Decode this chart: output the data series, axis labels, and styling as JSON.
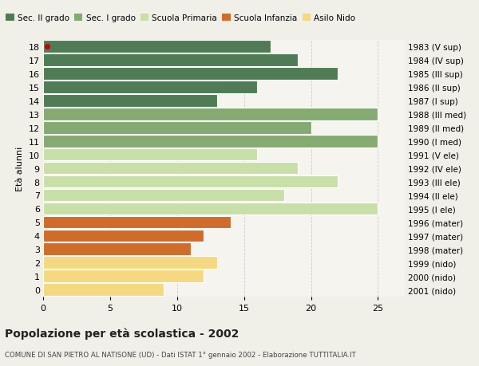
{
  "ages": [
    18,
    17,
    16,
    15,
    14,
    13,
    12,
    11,
    10,
    9,
    8,
    7,
    6,
    5,
    4,
    3,
    2,
    1,
    0
  ],
  "values": [
    17,
    19,
    22,
    16,
    13,
    25,
    20,
    25,
    16,
    19,
    22,
    18,
    25,
    14,
    12,
    11,
    13,
    12,
    9
  ],
  "categories": [
    "Sec. II grado",
    "Sec. II grado",
    "Sec. II grado",
    "Sec. II grado",
    "Sec. II grado",
    "Sec. I grado",
    "Sec. I grado",
    "Sec. I grado",
    "Scuola Primaria",
    "Scuola Primaria",
    "Scuola Primaria",
    "Scuola Primaria",
    "Scuola Primaria",
    "Scuola Infanzia",
    "Scuola Infanzia",
    "Scuola Infanzia",
    "Asilo Nido",
    "Asilo Nido",
    "Asilo Nido"
  ],
  "right_labels": [
    "1983 (V sup)",
    "1984 (IV sup)",
    "1985 (III sup)",
    "1986 (II sup)",
    "1987 (I sup)",
    "1988 (III med)",
    "1989 (II med)",
    "1990 (I med)",
    "1991 (V ele)",
    "1992 (IV ele)",
    "1993 (III ele)",
    "1994 (II ele)",
    "1995 (I ele)",
    "1996 (mater)",
    "1997 (mater)",
    "1998 (mater)",
    "1999 (nido)",
    "2000 (nido)",
    "2001 (nido)"
  ],
  "colors": {
    "Sec. II grado": "#4f7c54",
    "Sec. I grado": "#85aa72",
    "Scuola Primaria": "#c8dfa8",
    "Scuola Infanzia": "#d06b2a",
    "Asilo Nido": "#f5d880"
  },
  "legend_colors": [
    "#4f7c54",
    "#85aa72",
    "#c8dfa8",
    "#d06b2a",
    "#f5d880"
  ],
  "legend_labels": [
    "Sec. II grado",
    "Sec. I grado",
    "Scuola Primaria",
    "Scuola Infanzia",
    "Asilo Nido"
  ],
  "ylabel": "Età alunni",
  "title": "Popolazione per età scolastica - 2002",
  "subtitle": "COMUNE DI SAN PIETRO AL NATISONE (UD) - Dati ISTAT 1° gennaio 2002 - Elaborazione TUTTITALIA.IT",
  "xlim": [
    0,
    27
  ],
  "xticks": [
    0,
    5,
    10,
    15,
    20,
    25
  ],
  "bg_color": "#f0efe8",
  "bar_area_color": "#f5f4ee",
  "grid_color": "#cccccc",
  "dot_color": "#cc0000",
  "bar_height": 0.92
}
